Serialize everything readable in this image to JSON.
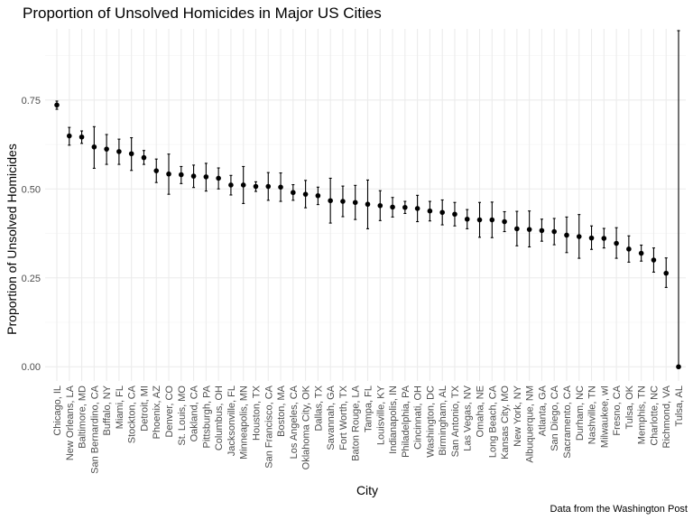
{
  "chart_data": {
    "type": "scatter",
    "title": "Proportion of Unsolved Homicides in Major US Cities",
    "xlabel": "City",
    "ylabel": "Proportion of Unsolved Homicides",
    "caption": "Data from the Washington Post",
    "ylim": [
      -0.04,
      0.95
    ],
    "yticks": [
      0.0,
      0.25,
      0.5,
      0.75
    ],
    "ytick_labels": [
      "0.00",
      "0.25",
      "0.50",
      "0.75"
    ],
    "grid": true,
    "legend": "none",
    "categories": [
      "Chicago, IL",
      "New Orleans, LA",
      "Baltimore, MD",
      "San Bernardino, CA",
      "Buffalo, NY",
      "Miami, FL",
      "Stockton, CA",
      "Detroit, MI",
      "Phoenix, AZ",
      "Denver, CO",
      "St. Louis, MO",
      "Oakland, CA",
      "Pittsburgh, PA",
      "Columbus, OH",
      "Jacksonville, FL",
      "Minneapolis, MN",
      "Houston, TX",
      "San Francisco, CA",
      "Boston, MA",
      "Los Angeles, CA",
      "Oklahoma City, OK",
      "Dallas, TX",
      "Savannah, GA",
      "Fort Worth, TX",
      "Baton Rouge, LA",
      "Tampa, FL",
      "Louisville, KY",
      "Indianapolis, IN",
      "Philadelphia, PA",
      "Cincinnati, OH",
      "Washington, DC",
      "Birmingham, AL",
      "San Antonio, TX",
      "Las Vegas, NV",
      "Omaha, NE",
      "Long Beach, CA",
      "Kansas City, MO",
      "New York, NY",
      "Albuquerque, NM",
      "Atlanta, GA",
      "San Diego, CA",
      "Sacramento, CA",
      "Durham, NC",
      "Nashville, TN",
      "Milwaukee, wI",
      "Fresno, CA",
      "Tulsa, OK",
      "Memphis, TN",
      "Charlotte, NC",
      "Richmond, VA",
      "Tulsa, AL"
    ],
    "estimate": [
      0.736,
      0.649,
      0.646,
      0.618,
      0.612,
      0.605,
      0.599,
      0.588,
      0.551,
      0.542,
      0.54,
      0.536,
      0.534,
      0.53,
      0.511,
      0.511,
      0.507,
      0.507,
      0.505,
      0.49,
      0.485,
      0.481,
      0.467,
      0.465,
      0.462,
      0.457,
      0.453,
      0.449,
      0.448,
      0.445,
      0.438,
      0.434,
      0.429,
      0.415,
      0.413,
      0.413,
      0.408,
      0.388,
      0.386,
      0.383,
      0.38,
      0.37,
      0.366,
      0.362,
      0.361,
      0.347,
      0.331,
      0.319,
      0.3,
      0.263,
      0.0
    ],
    "conf_low": [
      0.724,
      0.623,
      0.628,
      0.558,
      0.569,
      0.569,
      0.552,
      0.569,
      0.518,
      0.485,
      0.515,
      0.504,
      0.494,
      0.5,
      0.483,
      0.459,
      0.493,
      0.468,
      0.465,
      0.468,
      0.447,
      0.456,
      0.404,
      0.422,
      0.414,
      0.388,
      0.411,
      0.421,
      0.431,
      0.408,
      0.41,
      0.399,
      0.396,
      0.388,
      0.364,
      0.363,
      0.38,
      0.34,
      0.337,
      0.353,
      0.343,
      0.321,
      0.305,
      0.33,
      0.334,
      0.305,
      0.294,
      0.297,
      0.266,
      0.223,
      0.0
    ],
    "conf_high": [
      0.747,
      0.673,
      0.663,
      0.675,
      0.653,
      0.64,
      0.644,
      0.608,
      0.584,
      0.598,
      0.563,
      0.567,
      0.572,
      0.559,
      0.538,
      0.563,
      0.52,
      0.546,
      0.545,
      0.512,
      0.524,
      0.505,
      0.53,
      0.508,
      0.51,
      0.525,
      0.495,
      0.476,
      0.465,
      0.482,
      0.465,
      0.469,
      0.462,
      0.442,
      0.462,
      0.463,
      0.436,
      0.437,
      0.438,
      0.415,
      0.417,
      0.421,
      0.428,
      0.396,
      0.389,
      0.391,
      0.368,
      0.342,
      0.334,
      0.306,
      0.945
    ]
  }
}
